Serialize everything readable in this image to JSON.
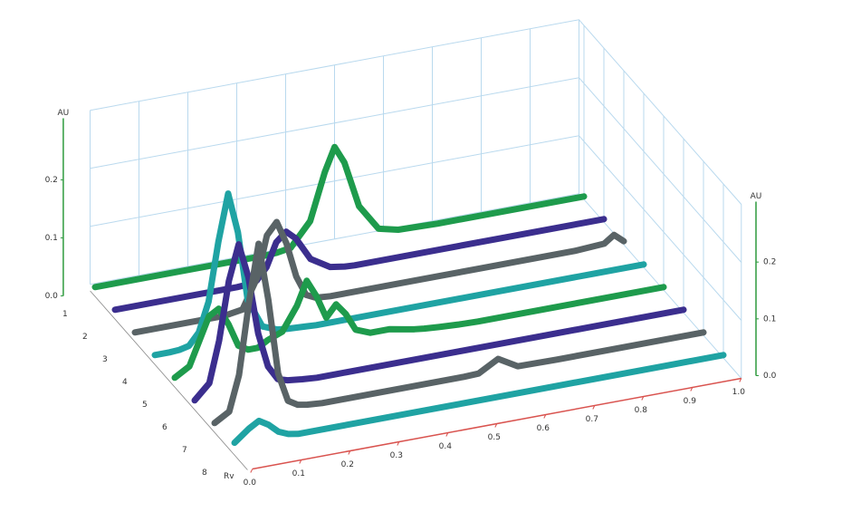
{
  "chart_data": {
    "type": "waterfall",
    "xlabel": "Rv",
    "ylabel": "AU",
    "y2label": "AU",
    "x": [
      0,
      0.03,
      0.05,
      0.07,
      0.09,
      0.11,
      0.13,
      0.15,
      0.17,
      0.19,
      0.22,
      0.25,
      0.27,
      0.29,
      0.31,
      0.33,
      0.35,
      0.37,
      0.4,
      0.44,
      0.47,
      0.49,
      0.51,
      0.54,
      0.58,
      0.62,
      0.7,
      0.8,
      0.9,
      0.96,
      0.98,
      1.0
    ],
    "series": [
      {
        "name": "1",
        "color": "#1e9b4c",
        "values": [
          0.005,
          0.005,
          0.005,
          0.005,
          0.005,
          0.005,
          0.005,
          0.005,
          0.005,
          0.005,
          0.005,
          0.005,
          0.005,
          0.005,
          0.005,
          0.005,
          0.005,
          0.006,
          0.01,
          0.05,
          0.13,
          0.17,
          0.14,
          0.06,
          0.015,
          0.007,
          0.005,
          0.005,
          0.005,
          0.005,
          0.005,
          0.005
        ]
      },
      {
        "name": "2",
        "color": "#3b2e8e",
        "values": [
          0.005,
          0.005,
          0.005,
          0.005,
          0.005,
          0.005,
          0.005,
          0.005,
          0.005,
          0.005,
          0.005,
          0.005,
          0.006,
          0.01,
          0.03,
          0.07,
          0.085,
          0.07,
          0.03,
          0.01,
          0.006,
          0.005,
          0.005,
          0.005,
          0.005,
          0.005,
          0.005,
          0.005,
          0.005,
          0.005,
          0.005,
          0.005
        ]
      },
      {
        "name": "3",
        "color": "#596366",
        "values": [
          0.005,
          0.005,
          0.005,
          0.005,
          0.005,
          0.005,
          0.005,
          0.005,
          0.005,
          0.006,
          0.01,
          0.06,
          0.13,
          0.15,
          0.11,
          0.05,
          0.015,
          0.007,
          0.005,
          0.005,
          0.005,
          0.005,
          0.005,
          0.005,
          0.005,
          0.005,
          0.005,
          0.005,
          0.005,
          0.008,
          0.02,
          0.006
        ]
      },
      {
        "name": "4",
        "color": "#1fa3a3",
        "values": [
          0.005,
          0.005,
          0.006,
          0.01,
          0.03,
          0.08,
          0.18,
          0.26,
          0.19,
          0.07,
          0.02,
          0.01,
          0.008,
          0.007,
          0.006,
          0.005,
          0.005,
          0.005,
          0.005,
          0.005,
          0.005,
          0.005,
          0.005,
          0.005,
          0.005,
          0.005,
          0.005,
          0.005,
          0.005,
          0.005,
          0.005,
          0.005
        ]
      },
      {
        "name": "5",
        "color": "#1e9b4c",
        "values": [
          0.005,
          0.02,
          0.06,
          0.1,
          0.11,
          0.08,
          0.04,
          0.03,
          0.03,
          0.04,
          0.05,
          0.09,
          0.13,
          0.1,
          0.06,
          0.08,
          0.06,
          0.03,
          0.02,
          0.02,
          0.015,
          0.012,
          0.01,
          0.008,
          0.006,
          0.005,
          0.005,
          0.005,
          0.005,
          0.005,
          0.005,
          0.005
        ]
      },
      {
        "name": "6",
        "color": "#3b2e8e",
        "values": [
          0.005,
          0.03,
          0.1,
          0.2,
          0.26,
          0.2,
          0.1,
          0.04,
          0.015,
          0.01,
          0.007,
          0.005,
          0.005,
          0.005,
          0.005,
          0.005,
          0.005,
          0.005,
          0.005,
          0.005,
          0.005,
          0.005,
          0.005,
          0.005,
          0.005,
          0.005,
          0.005,
          0.005,
          0.005,
          0.005,
          0.005,
          0.005
        ]
      },
      {
        "name": "7",
        "color": "#596366",
        "values": [
          0.005,
          0.02,
          0.08,
          0.2,
          0.3,
          0.2,
          0.07,
          0.02,
          0.01,
          0.007,
          0.005,
          0.005,
          0.005,
          0.005,
          0.005,
          0.005,
          0.005,
          0.005,
          0.005,
          0.005,
          0.005,
          0.005,
          0.005,
          0.006,
          0.025,
          0.006,
          0.005,
          0.005,
          0.005,
          0.005,
          0.005,
          0.005
        ]
      },
      {
        "name": "8",
        "color": "#1fa3a3",
        "values": [
          0.01,
          0.03,
          0.04,
          0.03,
          0.015,
          0.008,
          0.005,
          0.005,
          0.005,
          0.005,
          0.005,
          0.005,
          0.005,
          0.005,
          0.005,
          0.005,
          0.005,
          0.005,
          0.005,
          0.005,
          0.005,
          0.005,
          0.005,
          0.005,
          0.005,
          0.005,
          0.005,
          0.005,
          0.005,
          0.005,
          0.005,
          0.005
        ]
      }
    ],
    "xlim": [
      0,
      1
    ],
    "xticks": [
      {
        "value": 0,
        "label": "0.0"
      },
      0.1,
      0.2,
      0.3,
      0.4,
      0.5,
      0.6,
      0.7,
      0.8,
      0.9,
      {
        "value": 1,
        "label": "1.0"
      }
    ],
    "ylim": [
      0,
      0.3
    ],
    "yticks": [
      {
        "value": 0,
        "label": "0.0"
      },
      0.1,
      0.2
    ],
    "y2lim": [
      0,
      0.3
    ],
    "y2ticks": [
      {
        "value": 0,
        "label": "0.0"
      },
      0.1,
      0.2
    ],
    "grid": true,
    "axis_color": "#2e9a3e",
    "x_axis_color": "#d9534f",
    "grid_color": "#b9d9ee"
  }
}
